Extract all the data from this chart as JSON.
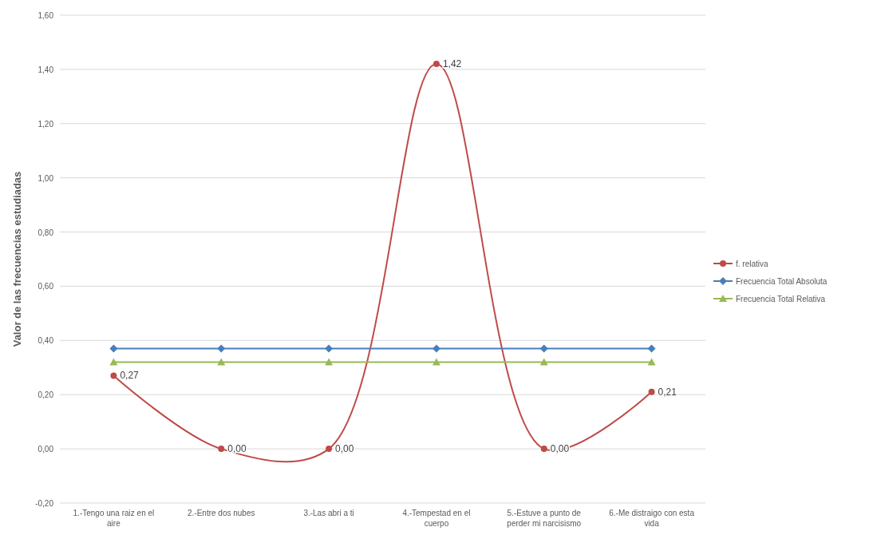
{
  "chart_data": {
    "type": "line",
    "ylabel": "Valor de las frecuencias estudiadas",
    "categories": [
      "1.-Tengo una raiz en el aire",
      "2.-Entre dos nubes",
      "3.-Las abri a ti",
      "4.-Tempestad en el cuerpo",
      "5.-Estuve a punto de perder mi narcisismo",
      "6.-Me distraigo con esta vida"
    ],
    "series": [
      {
        "name": "f. relativa",
        "color": "#be4b48",
        "marker": "circle",
        "values": [
          0.27,
          0,
          0,
          1.42,
          0,
          0.21
        ],
        "value_labels": [
          "0,27",
          "0,00",
          "0,00",
          "1,42",
          "0,00",
          "0,21"
        ]
      },
      {
        "name": "Frecuencia Total Absoluta",
        "color": "#4a7ebb",
        "marker": "diamond",
        "values": [
          0.37,
          0.37,
          0.37,
          0.37,
          0.37,
          0.37
        ]
      },
      {
        "name": "Frecuencia Total Relativa",
        "color": "#98b954",
        "marker": "triangle",
        "values": [
          0.32,
          0.32,
          0.32,
          0.32,
          0.32,
          0.32
        ]
      }
    ],
    "ylim": [
      -0.2,
      1.6
    ],
    "yticks": [
      {
        "value": -0.2,
        "label": "-0,20"
      },
      {
        "value": 0,
        "label": "0,00"
      },
      {
        "value": 0.2,
        "label": "0,20"
      },
      {
        "value": 0.4,
        "label": "0,40"
      },
      {
        "value": 0.6,
        "label": "0,60"
      },
      {
        "value": 0.8,
        "label": "0,80"
      },
      {
        "value": 1,
        "label": "1,00"
      },
      {
        "value": 1.2,
        "label": "1,20"
      },
      {
        "value": 1.4,
        "label": "1,40"
      },
      {
        "value": 1.6,
        "label": "1,60"
      }
    ],
    "grid": "y",
    "legend": "right"
  }
}
